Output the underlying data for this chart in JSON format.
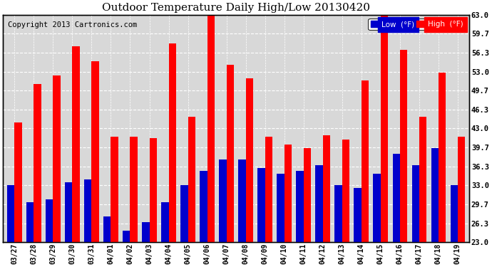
{
  "dates": [
    "03/27",
    "03/28",
    "03/29",
    "03/30",
    "03/31",
    "04/01",
    "04/02",
    "04/03",
    "04/04",
    "04/05",
    "04/06",
    "04/07",
    "04/08",
    "04/09",
    "04/10",
    "04/11",
    "04/12",
    "04/13",
    "04/14",
    "04/15",
    "04/16",
    "04/17",
    "04/18",
    "04/19"
  ],
  "high": [
    44.0,
    50.8,
    52.3,
    57.5,
    54.8,
    41.5,
    41.5,
    41.3,
    58.0,
    45.0,
    63.0,
    54.2,
    51.8,
    41.5,
    40.2,
    39.5,
    41.8,
    41.0,
    51.5,
    63.5,
    56.8,
    45.0,
    52.8,
    41.5
  ],
  "low": [
    33.0,
    30.0,
    30.5,
    33.5,
    34.0,
    27.5,
    25.0,
    26.5,
    30.0,
    33.0,
    35.5,
    37.5,
    37.5,
    36.0,
    35.0,
    35.5,
    36.5,
    33.0,
    32.5,
    35.0,
    38.5,
    36.5,
    39.5,
    33.0
  ],
  "high_color": "#ff0000",
  "low_color": "#0000cc",
  "title": "Outdoor Temperature Daily High/Low 20130420",
  "copyright": "Copyright 2013 Cartronics.com",
  "ylabel_right": [
    "63.0",
    "59.7",
    "56.3",
    "53.0",
    "49.7",
    "46.3",
    "43.0",
    "39.7",
    "36.3",
    "33.0",
    "29.7",
    "26.3",
    "23.0"
  ],
  "yticks": [
    63.0,
    59.7,
    56.3,
    53.0,
    49.7,
    46.3,
    43.0,
    39.7,
    36.3,
    33.0,
    29.7,
    26.3,
    23.0
  ],
  "ymin": 23.0,
  "ymax": 63.0,
  "bg_color": "#ffffff",
  "plot_bg_color": "#d8d8d8",
  "grid_color": "#ffffff",
  "legend_low_label": "Low  (°F)",
  "legend_high_label": "High  (°F)",
  "title_fontsize": 11,
  "copyright_fontsize": 7.5,
  "bar_width": 0.38
}
